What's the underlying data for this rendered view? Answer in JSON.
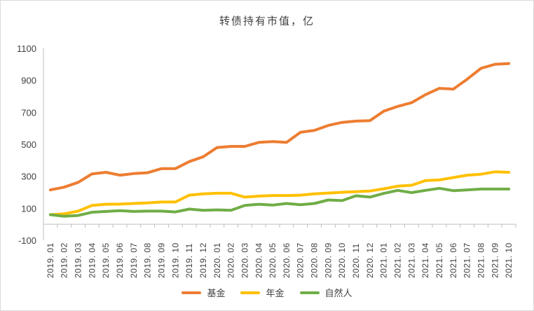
{
  "chart_data": {
    "type": "line",
    "title": "转债持有市值，亿",
    "xlabel": "",
    "ylabel": "",
    "ylim": [
      -100,
      1100
    ],
    "yticks": [
      -100,
      100,
      300,
      500,
      700,
      900,
      1100
    ],
    "grid": false,
    "legend_position": "bottom",
    "categories": [
      "2019.01",
      "2019.02",
      "2019.03",
      "2019.04",
      "2019.05",
      "2019.06",
      "2019.07",
      "2019.08",
      "2019.09",
      "2019.10",
      "2019.11",
      "2019.12",
      "2020.01",
      "2020.02",
      "2020.03",
      "2020.04",
      "2020.05",
      "2020.06",
      "2020.07",
      "2020.08",
      "2020.09",
      "2020.10",
      "2020.11",
      "2020.12",
      "2021.01",
      "2021.02",
      "2021.03",
      "2021.04",
      "2021.05",
      "2021.06",
      "2021.07",
      "2021.08",
      "2021.09",
      "2021.10"
    ],
    "series": [
      {
        "name": "基金",
        "color": "#ED7D31",
        "values": [
          215,
          232,
          262,
          315,
          325,
          307,
          317,
          322,
          348,
          348,
          392,
          422,
          480,
          487,
          487,
          512,
          517,
          512,
          575,
          587,
          618,
          637,
          645,
          648,
          707,
          737,
          760,
          810,
          850,
          845,
          907,
          975,
          1000,
          1005
        ]
      },
      {
        "name": "年金",
        "color": "#FFC000",
        "values": [
          60,
          65,
          82,
          118,
          125,
          126,
          130,
          134,
          139,
          139,
          182,
          190,
          194,
          194,
          170,
          176,
          180,
          180,
          182,
          190,
          195,
          200,
          204,
          208,
          222,
          238,
          244,
          273,
          277,
          292,
          307,
          313,
          328,
          325
        ]
      },
      {
        "name": "自然人",
        "color": "#70AD47",
        "values": [
          60,
          50,
          55,
          75,
          80,
          85,
          80,
          82,
          82,
          77,
          95,
          87,
          90,
          87,
          118,
          125,
          120,
          130,
          122,
          130,
          152,
          148,
          178,
          170,
          193,
          212,
          198,
          212,
          225,
          210,
          215,
          220,
          220,
          220
        ]
      }
    ]
  }
}
